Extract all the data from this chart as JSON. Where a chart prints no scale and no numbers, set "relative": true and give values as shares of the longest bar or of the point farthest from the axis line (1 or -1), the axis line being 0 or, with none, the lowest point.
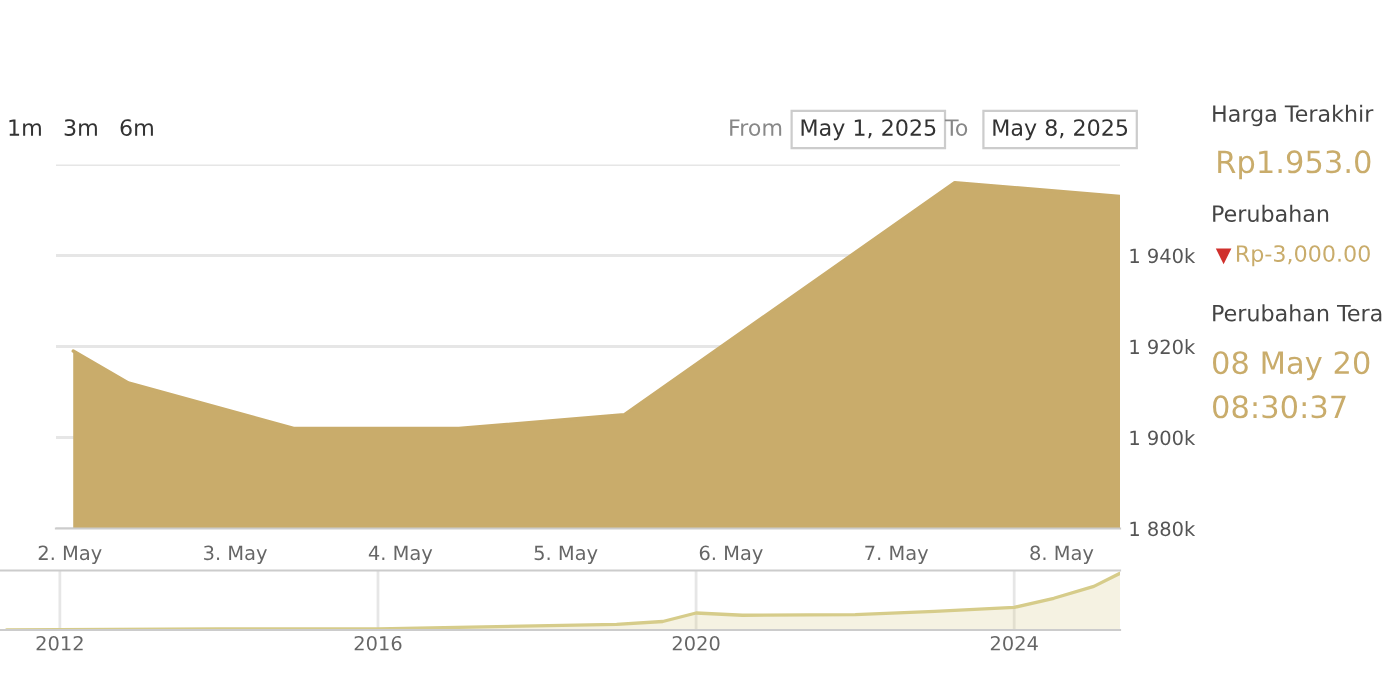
{
  "chart_data": [
    {
      "type": "area",
      "x": [
        "2025-05-02T00:30",
        "2025-05-02T08:30",
        "2025-05-03T08:30",
        "2025-05-04T08:30",
        "2025-05-05T08:30",
        "2025-05-07T08:30",
        "2025-05-08T08:30"
      ],
      "series": [
        {
          "color": "#c9ac6b",
          "values": [
            1919,
            1912,
            1902,
            1902,
            1905,
            1956,
            1953
          ]
        }
      ],
      "xlim": [
        "2025-05-01T22:00",
        "2025-05-08T08:30"
      ],
      "xticks": [
        {
          "value": "2025-05-02",
          "label": "2. May"
        },
        {
          "value": "2025-05-03",
          "label": "3. May"
        },
        {
          "value": "2025-05-04",
          "label": "4. May"
        },
        {
          "value": "2025-05-05",
          "label": "5. May"
        },
        {
          "value": "2025-05-06",
          "label": "6. May"
        },
        {
          "value": "2025-05-07",
          "label": "7. May"
        },
        {
          "value": "2025-05-08",
          "label": "8. May"
        }
      ],
      "ylim": [
        1880,
        1960
      ],
      "yticks": [
        {
          "value": 1880,
          "label": "1 880k"
        },
        {
          "value": 1900,
          "label": "1 900k"
        },
        {
          "value": 1920,
          "label": "1 920k"
        },
        {
          "value": 1940,
          "label": "1 940k"
        },
        {
          "value": 1960,
          "label": null
        }
      ],
      "grid": "y",
      "marker": "none",
      "annotations": [
        "1m",
        "3m",
        "6m",
        "From",
        "May 1, 2025",
        "To",
        "May 8, 2025",
        "Harga Terakhir",
        "Rp1.953.0",
        "Perubahan",
        "Rp-3,000.00",
        "Perubahan Tera",
        "08 May 20",
        "08:30:37"
      ]
    },
    {
      "type": "area",
      "relative": true,
      "x": [
        "2011-05",
        "2014-01",
        "2016-01",
        "2019-01",
        "2019-08",
        "2020-01",
        "2020-08",
        "2022-01",
        "2023-01",
        "2024-01",
        "2024-07",
        "2025-01",
        "2025-05"
      ],
      "series": [
        {
          "color": "#d6cc8a",
          "values": [
            0,
            0.02,
            0.02,
            0.1,
            0.15,
            0.3,
            0.26,
            0.27,
            0.33,
            0.4,
            0.56,
            0.77,
            1
          ]
        }
      ],
      "xlim": [
        "2011-04",
        "2025-05"
      ],
      "xticks": [
        {
          "value": "2012",
          "label": "2012"
        },
        {
          "value": "2016",
          "label": "2016"
        },
        {
          "value": "2020",
          "label": "2020"
        },
        {
          "value": "2024",
          "label": "2024"
        }
      ],
      "grid": "x",
      "marker": "none"
    }
  ]
}
